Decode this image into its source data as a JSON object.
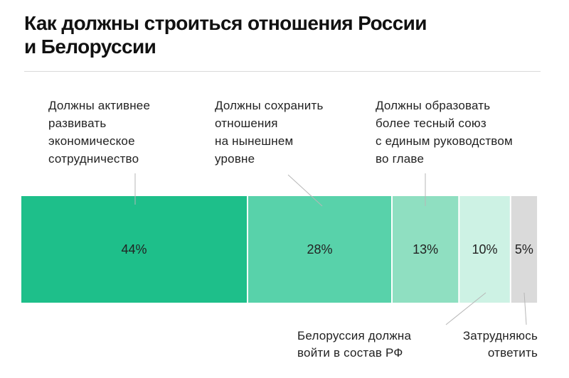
{
  "title_lines": [
    "Как должны строиться отношения России",
    "и Белоруссии"
  ],
  "colors": {
    "seg1": "#1ebf8a",
    "seg2": "#58d2aa",
    "seg3": "#8fdfc1",
    "seg4": "#cdf2e4",
    "seg5": "#dadada",
    "leader": "#b7b7b7",
    "rule": "#d9d9d9"
  },
  "chart_data": {
    "type": "bar",
    "orientation": "horizontal-stacked-100",
    "title": "Как должны строиться отношения России и Белоруссии",
    "unit": "%",
    "xlim": [
      0,
      100
    ],
    "grid": false,
    "categories": [
      "Должны активнее развивать экономическое сотрудничество",
      "Должны сохранить отношения на нынешнем уровне",
      "Должны образовать более тесный союз с единым руководством во главе",
      "Белоруссия должна войти в состав РФ",
      "Затрудняюсь ответить"
    ],
    "values": [
      44,
      28,
      13,
      10,
      5
    ],
    "value_labels": [
      "44%",
      "28%",
      "13%",
      "10%",
      "5%"
    ],
    "label_lines": [
      [
        "Должны активнее",
        "развивать",
        "экономическое",
        "сотрудничество"
      ],
      [
        "Должны сохранить",
        "отношения",
        "на нынешнем",
        "уровне"
      ],
      [
        "Должны образовать",
        "более тесный союз",
        "с единым руководством",
        "во главе"
      ],
      [
        "Белоруссия должна",
        "войти в состав РФ"
      ],
      [
        "Затрудняюсь",
        "ответить"
      ]
    ]
  }
}
